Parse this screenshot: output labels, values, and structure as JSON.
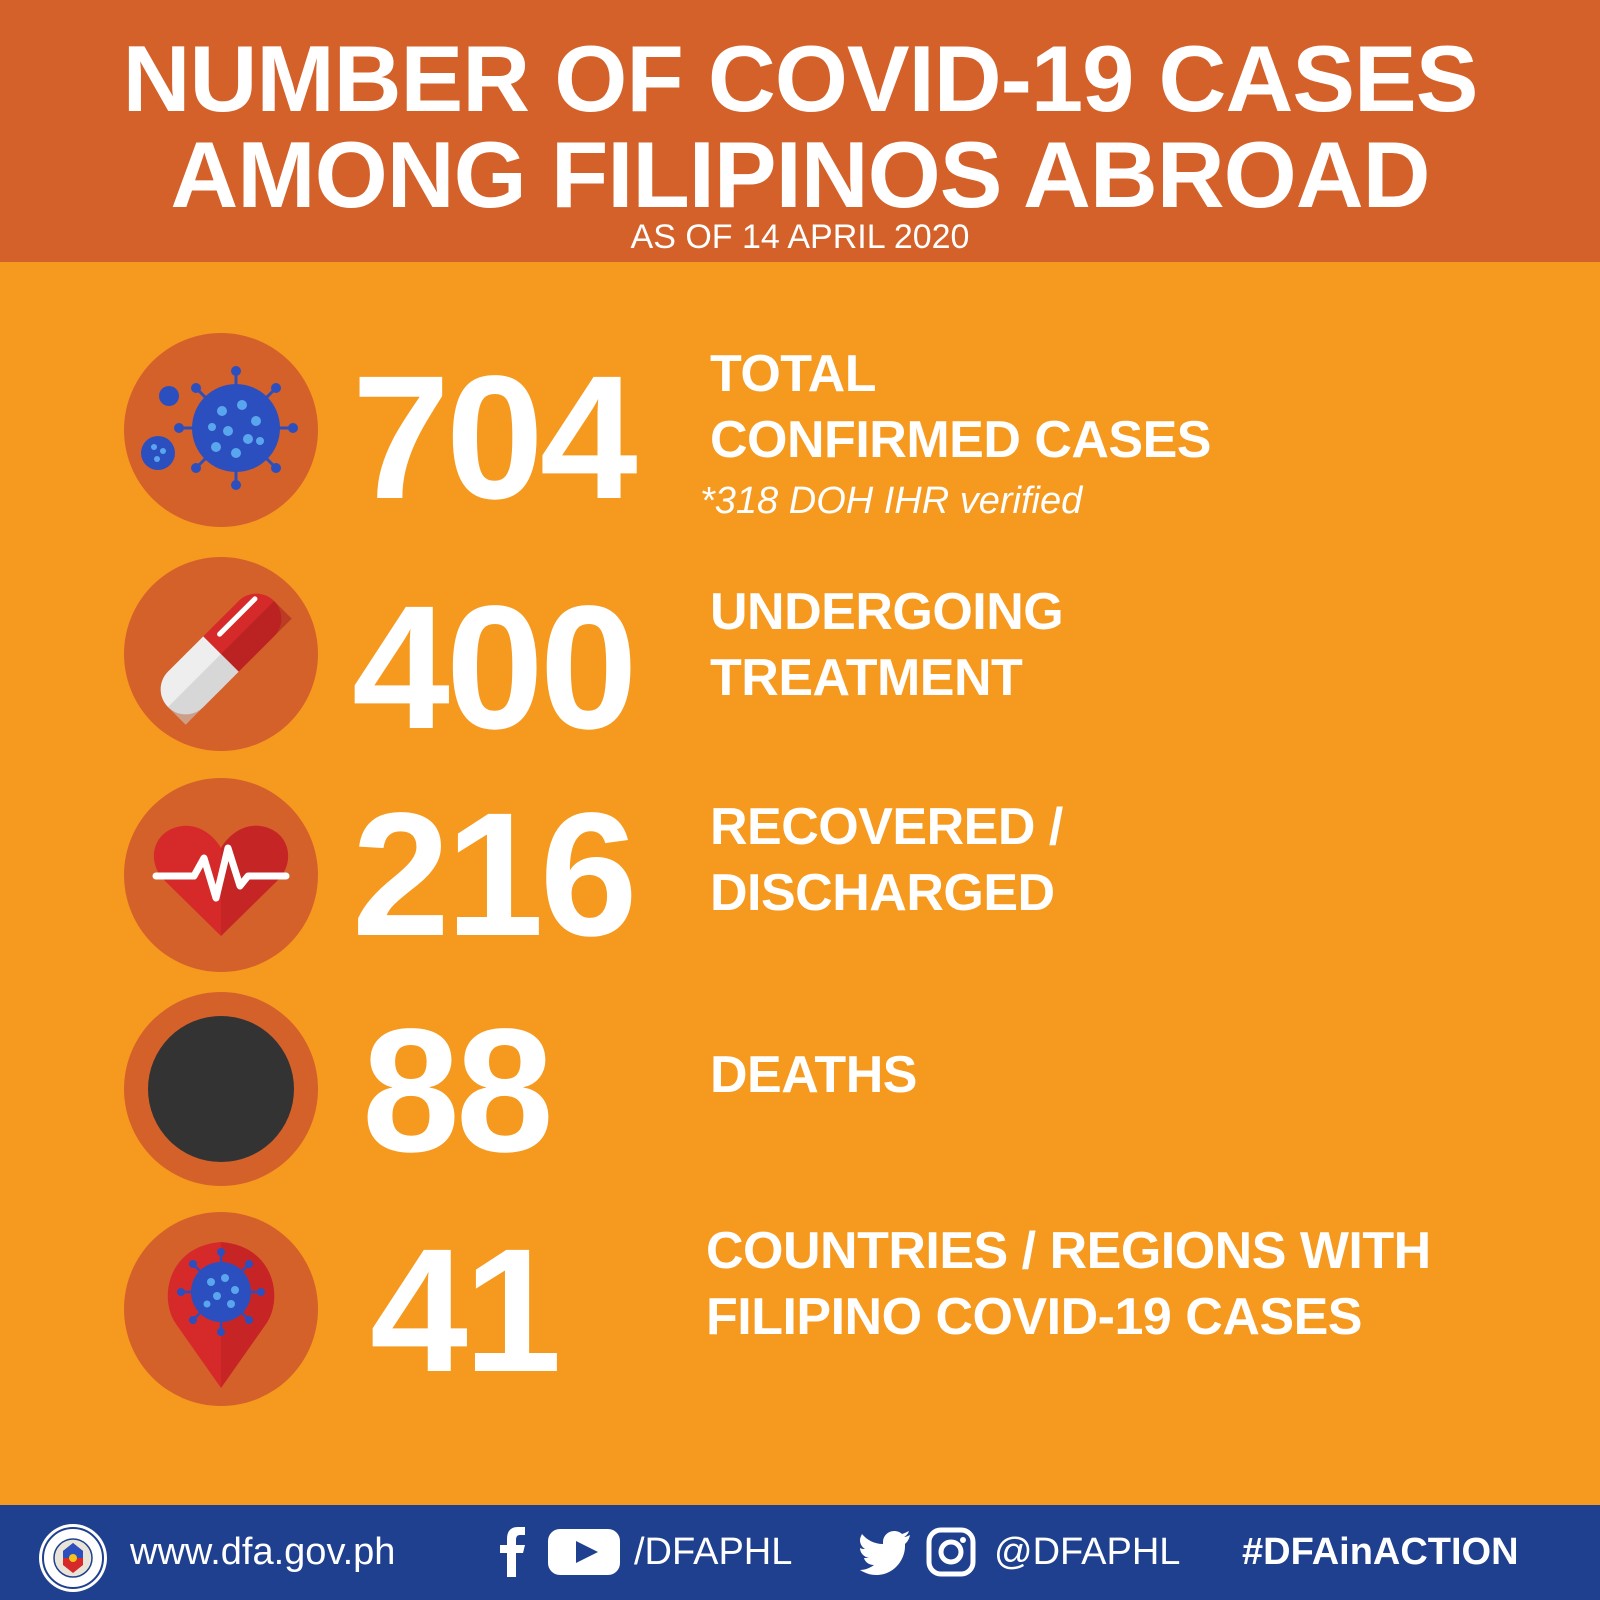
{
  "header": {
    "title_line1": "NUMBER OF COVID-19 CASES",
    "title_line2": "AMONG FILIPINOS ABROAD",
    "as_of": "AS OF 14 APRIL 2020"
  },
  "stats": [
    {
      "icon": "virus-icon",
      "value": "704",
      "label_line1": "TOTAL",
      "label_line2": "CONFIRMED CASES",
      "note": "*318 DOH IHR verified"
    },
    {
      "icon": "pill-capsule-icon",
      "value": "400",
      "label_line1": "UNDERGOING",
      "label_line2": "TREATMENT"
    },
    {
      "icon": "heart-pulse-icon",
      "value": "216",
      "label_line1": "RECOVERED /",
      "label_line2": "DISCHARGED"
    },
    {
      "icon": "black-circle-icon",
      "value": "88",
      "label_line1": "DEATHS"
    },
    {
      "icon": "location-pin-virus-icon",
      "value": "41",
      "label_line1": "COUNTRIES / REGIONS WITH",
      "label_line2": "FILIPINO COVID-19 CASES"
    }
  ],
  "footer": {
    "website": "www.dfa.gov.ph",
    "facebook_youtube_handle": "/DFAPHL",
    "twitter_instagram_handle": "@DFAPHL",
    "hashtag": "#DFAinACTION"
  },
  "colors": {
    "background": "#f6991f",
    "header": "#d4612a",
    "footer": "#1f3f8f",
    "virus_blue": "#2b4fbf",
    "pill_red": "#d62a2a",
    "death_circle": "#333333"
  }
}
